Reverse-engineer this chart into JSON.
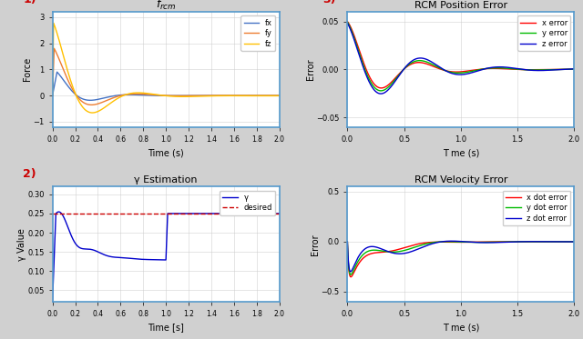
{
  "fig_width": 6.4,
  "fig_height": 3.73,
  "dpi": 100,
  "bg_color": "#d0d0d0",
  "panel_bg": "#ffffff",
  "plot1_title": "$f_{rcm}$",
  "plot1_xlabel": "Time (s)",
  "plot1_ylabel": "Force",
  "plot1_xlim": [
    0,
    2
  ],
  "plot1_ylim": [
    -1.2,
    3.2
  ],
  "plot1_yticks": [
    -1,
    0,
    1,
    2,
    3
  ],
  "plot1_xticks": [
    0,
    0.2,
    0.4,
    0.6,
    0.8,
    1.0,
    1.2,
    1.4,
    1.6,
    1.8,
    2.0
  ],
  "plot1_colors": [
    "#4472c4",
    "#ed7d31",
    "#ffc000"
  ],
  "plot1_labels": [
    "fx",
    "fy",
    "fz"
  ],
  "plot2_title": "γ Estimation",
  "plot2_xlabel": "Time [s]",
  "plot2_ylabel": "γ Value",
  "plot2_xlim": [
    0,
    2
  ],
  "plot2_ylim": [
    0.02,
    0.32
  ],
  "plot2_yticks": [
    0.05,
    0.1,
    0.15,
    0.2,
    0.25,
    0.3
  ],
  "plot2_xticks": [
    0,
    0.2,
    0.4,
    0.6,
    0.8,
    1.0,
    1.2,
    1.4,
    1.6,
    1.8,
    2.0
  ],
  "plot2_gamma_color": "#0000cc",
  "plot2_desired_color": "#cc0000",
  "plot2_desired_value": 0.25,
  "plot2_labels": [
    "γ",
    "desired"
  ],
  "plot3_title": "RCM Position Error",
  "plot3_xlabel": "T me (s)",
  "plot3_ylabel": "Error",
  "plot3_xlim": [
    0,
    2
  ],
  "plot3_ylim": [
    -0.06,
    0.06
  ],
  "plot3_yticks": [
    -0.05,
    0,
    0.05
  ],
  "plot3_xticks": [
    0,
    0.5,
    1.0,
    1.5,
    2.0
  ],
  "plot3_colors": [
    "#ff0000",
    "#00bb00",
    "#0000cc"
  ],
  "plot3_labels": [
    "x error",
    "y error",
    "z error"
  ],
  "plot4_title": "RCM Velocity Error",
  "plot4_xlabel": "T me (s)",
  "plot4_ylabel": "Error",
  "plot4_xlim": [
    0,
    2
  ],
  "plot4_ylim": [
    -0.6,
    0.55
  ],
  "plot4_yticks": [
    -0.5,
    0,
    0.5
  ],
  "plot4_xticks": [
    0,
    0.5,
    1.0,
    1.5,
    2.0
  ],
  "plot4_colors": [
    "#ff0000",
    "#00bb00",
    "#0000cc"
  ],
  "plot4_labels": [
    "x dot error",
    "y dot error",
    "z dot error"
  ],
  "label_color": "#cc0000",
  "border_color": "#5599cc"
}
